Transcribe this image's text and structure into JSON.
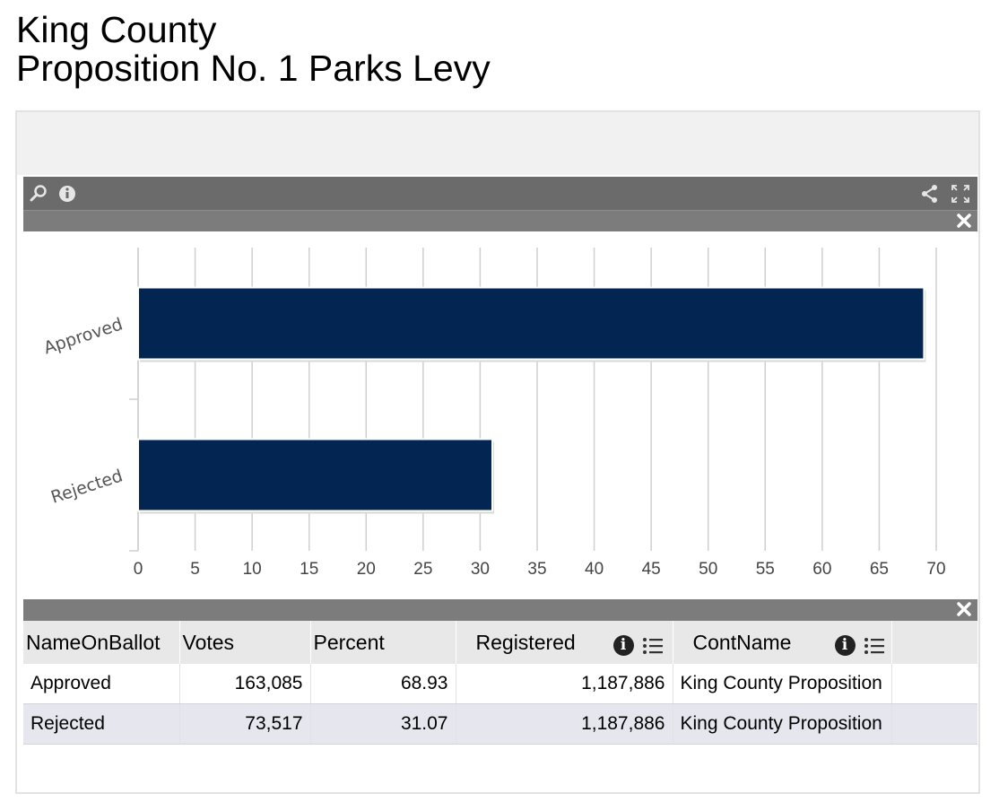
{
  "header": {
    "title_line1": "King County",
    "title_line2": "Proposition No. 1 Parks Levy"
  },
  "toolbar": {
    "left_icons": [
      "search-icon",
      "info-icon"
    ],
    "right_icons": [
      "share-icon",
      "fullscreen-icon"
    ],
    "close_icon": "close-icon"
  },
  "colors": {
    "bar": "#032552",
    "toolbar": "#6b6b6b",
    "subbar": "#7c7c7c",
    "even_row": "#e6e6ee"
  },
  "chart_data": {
    "type": "bar",
    "orientation": "horizontal",
    "categories": [
      "Approved",
      "Rejected"
    ],
    "values": [
      68.93,
      31.07
    ],
    "xlim": [
      0,
      70
    ],
    "xticks": [
      0,
      5,
      10,
      15,
      20,
      25,
      30,
      35,
      40,
      45,
      50,
      55,
      60,
      65,
      70
    ],
    "grid": true,
    "legend": "none"
  },
  "table": {
    "columns": [
      "NameOnBallot",
      "Votes",
      "Percent",
      "Registered",
      "ContName"
    ],
    "rows": [
      [
        "Approved",
        "163,085",
        "68.93",
        "1,187,886",
        "King County Proposition"
      ],
      [
        "Rejected",
        "73,517",
        "31.07",
        "1,187,886",
        "King County Proposition"
      ]
    ]
  }
}
